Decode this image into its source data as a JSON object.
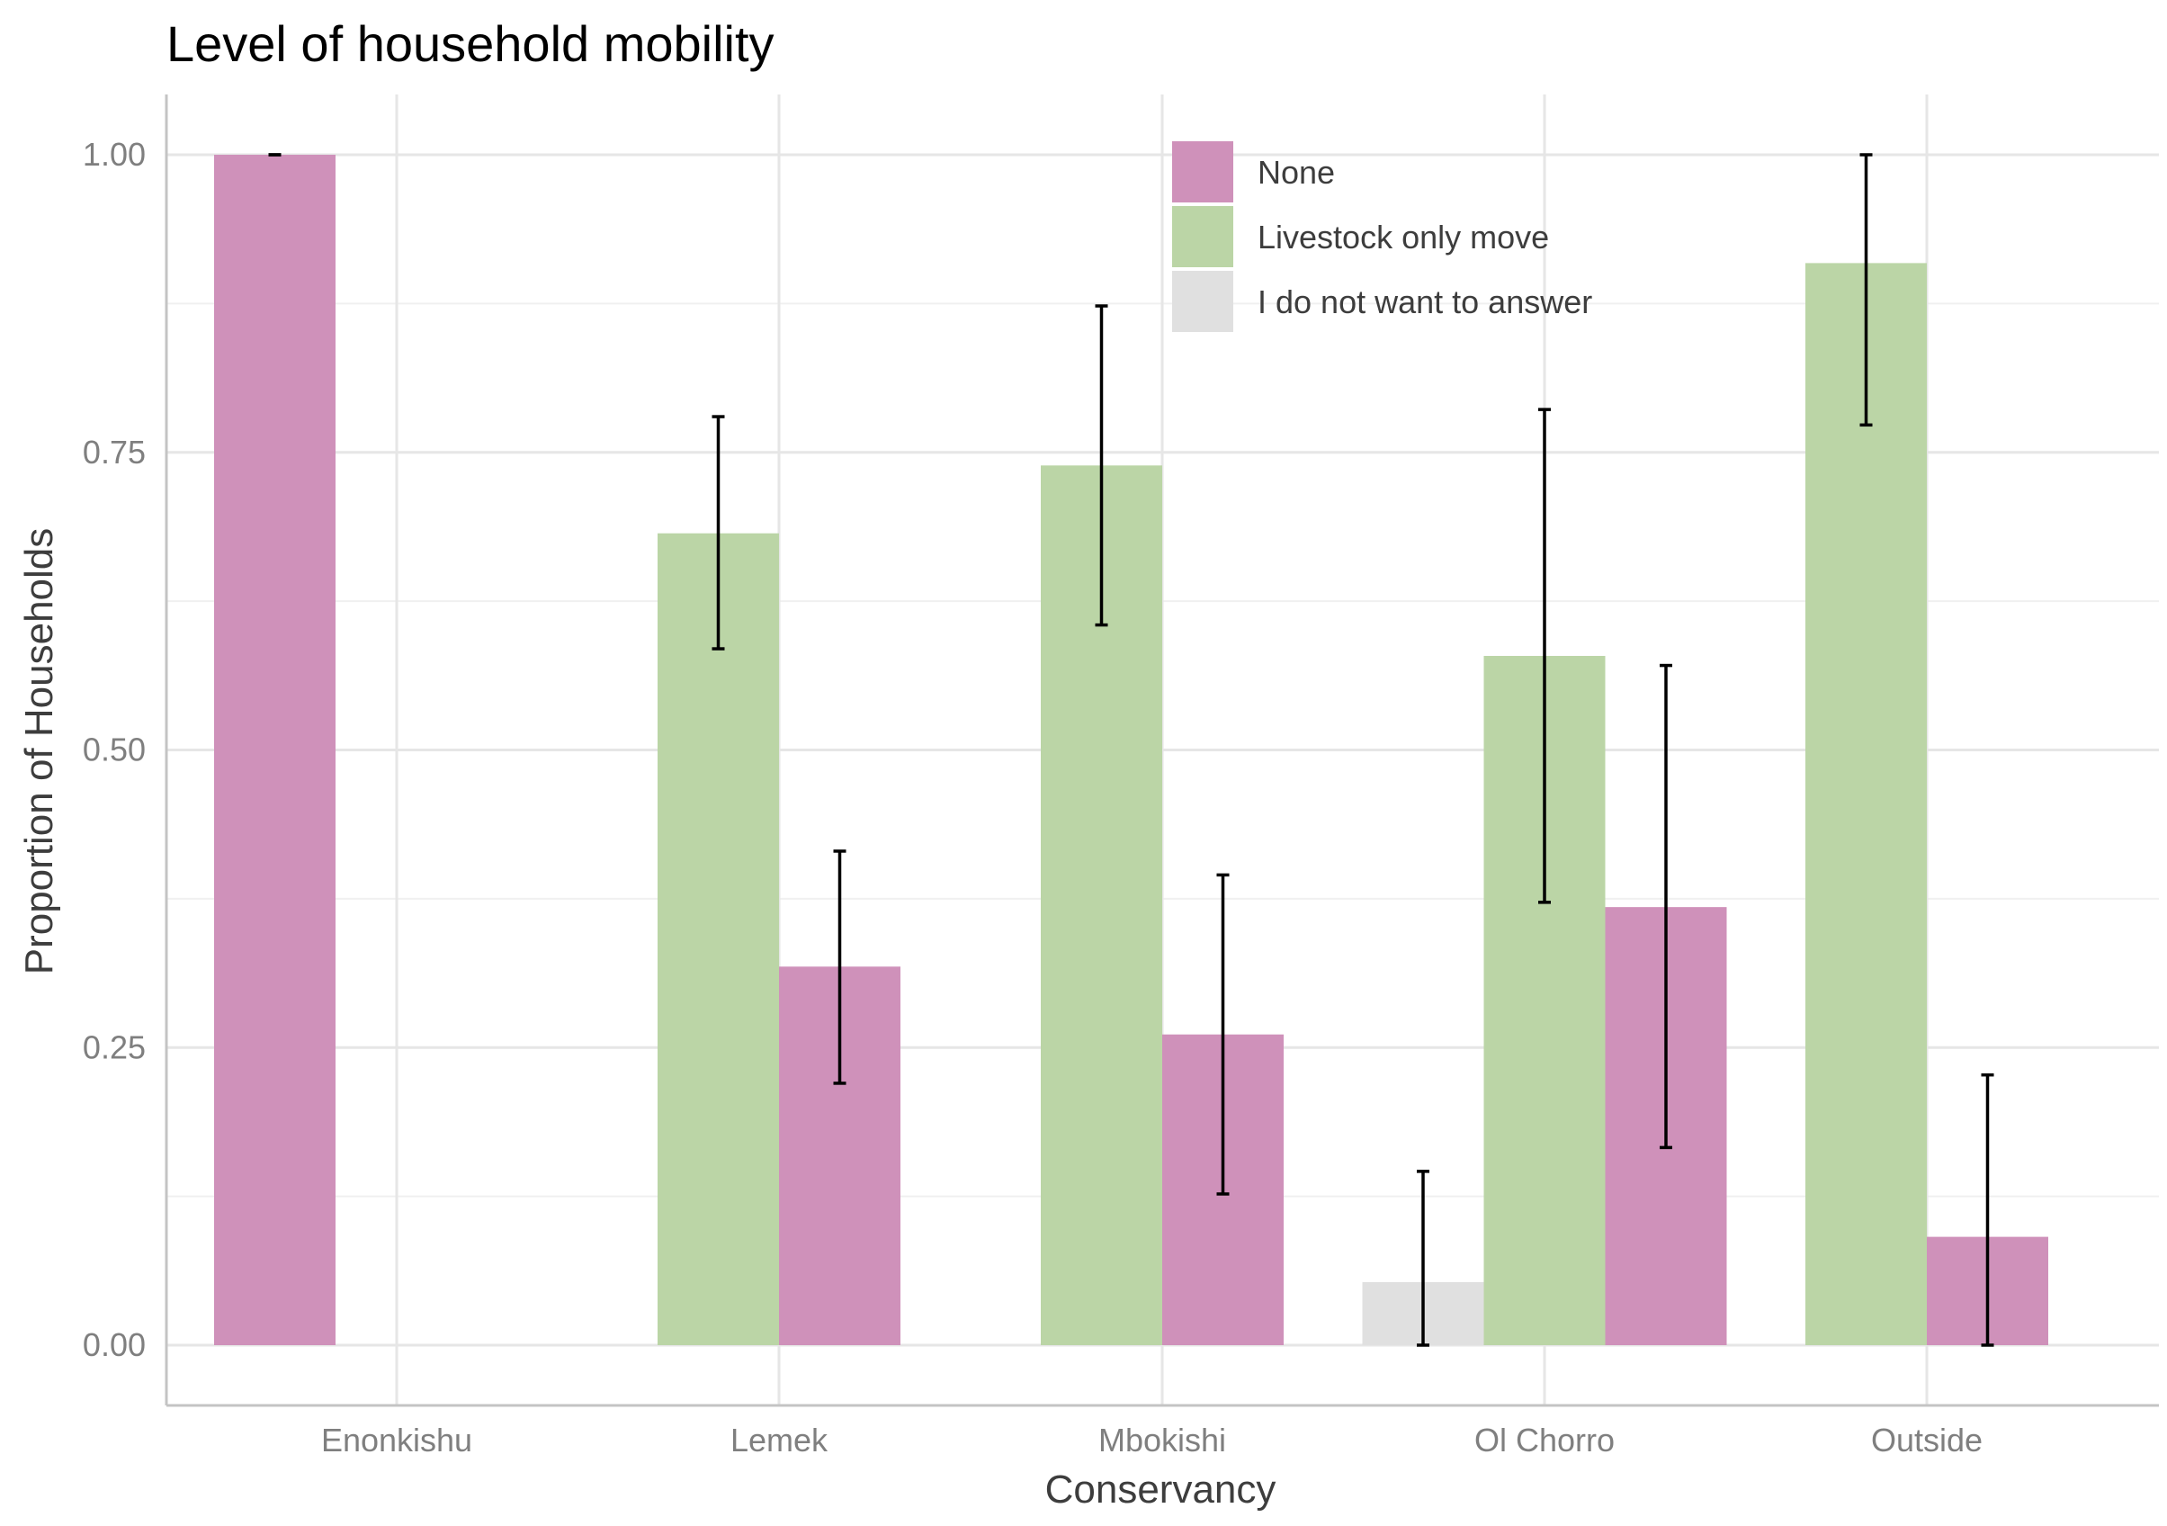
{
  "chart_data": {
    "type": "bar",
    "title": "Level of household mobility",
    "xlabel": "Conservancy",
    "ylabel": "Proportion of Households",
    "categories": [
      "Enonkishu",
      "Lemek",
      "Mbokishi",
      "Ol Chorro",
      "Outside"
    ],
    "yticks": [
      "0.00",
      "0.25",
      "0.50",
      "0.75",
      "1.00"
    ],
    "ytick_values": [
      0,
      0.25,
      0.5,
      0.75,
      1.0
    ],
    "ylim": [
      -0.05,
      1.05
    ],
    "grid": true,
    "legend_position": "top-right (inside plot)",
    "series": [
      {
        "name": "I do not want to answer",
        "color": "#e0e0e0"
      },
      {
        "name": "Livestock only move",
        "color": "#bbd5a6"
      },
      {
        "name": "None",
        "color": "#cf91ba"
      }
    ],
    "legend_order": [
      2,
      1,
      0
    ],
    "bars": [
      {
        "category": "Enonkishu",
        "series": "None",
        "value": 1.0,
        "err_low": 1.0,
        "err_high": 1.0,
        "slot": 0,
        "slots": 1
      },
      {
        "category": "Lemek",
        "series": "Livestock only move",
        "value": 0.682,
        "err_low": 0.585,
        "err_high": 0.78,
        "slot": 0,
        "slots": 2
      },
      {
        "category": "Lemek",
        "series": "None",
        "value": 0.318,
        "err_low": 0.22,
        "err_high": 0.415,
        "slot": 1,
        "slots": 2
      },
      {
        "category": "Mbokishi",
        "series": "Livestock only move",
        "value": 0.739,
        "err_low": 0.605,
        "err_high": 0.873,
        "slot": 0,
        "slots": 2
      },
      {
        "category": "Mbokishi",
        "series": "None",
        "value": 0.261,
        "err_low": 0.127,
        "err_high": 0.395,
        "slot": 1,
        "slots": 2
      },
      {
        "category": "Ol Chorro",
        "series": "I do not want to answer",
        "value": 0.053,
        "err_low": 0.0,
        "err_high": 0.146,
        "slot": 0,
        "slots": 3
      },
      {
        "category": "Ol Chorro",
        "series": "Livestock only move",
        "value": 0.579,
        "err_low": 0.372,
        "err_high": 0.786,
        "slot": 1,
        "slots": 3
      },
      {
        "category": "Ol Chorro",
        "series": "None",
        "value": 0.368,
        "err_low": 0.166,
        "err_high": 0.571,
        "slot": 2,
        "slots": 3
      },
      {
        "category": "Outside",
        "series": "Livestock only move",
        "value": 0.909,
        "err_low": 0.773,
        "err_high": 1.0,
        "slot": 0,
        "slots": 2
      },
      {
        "category": "Outside",
        "series": "None",
        "value": 0.091,
        "err_low": 0.0,
        "err_high": 0.227,
        "slot": 1,
        "slots": 2
      }
    ]
  }
}
